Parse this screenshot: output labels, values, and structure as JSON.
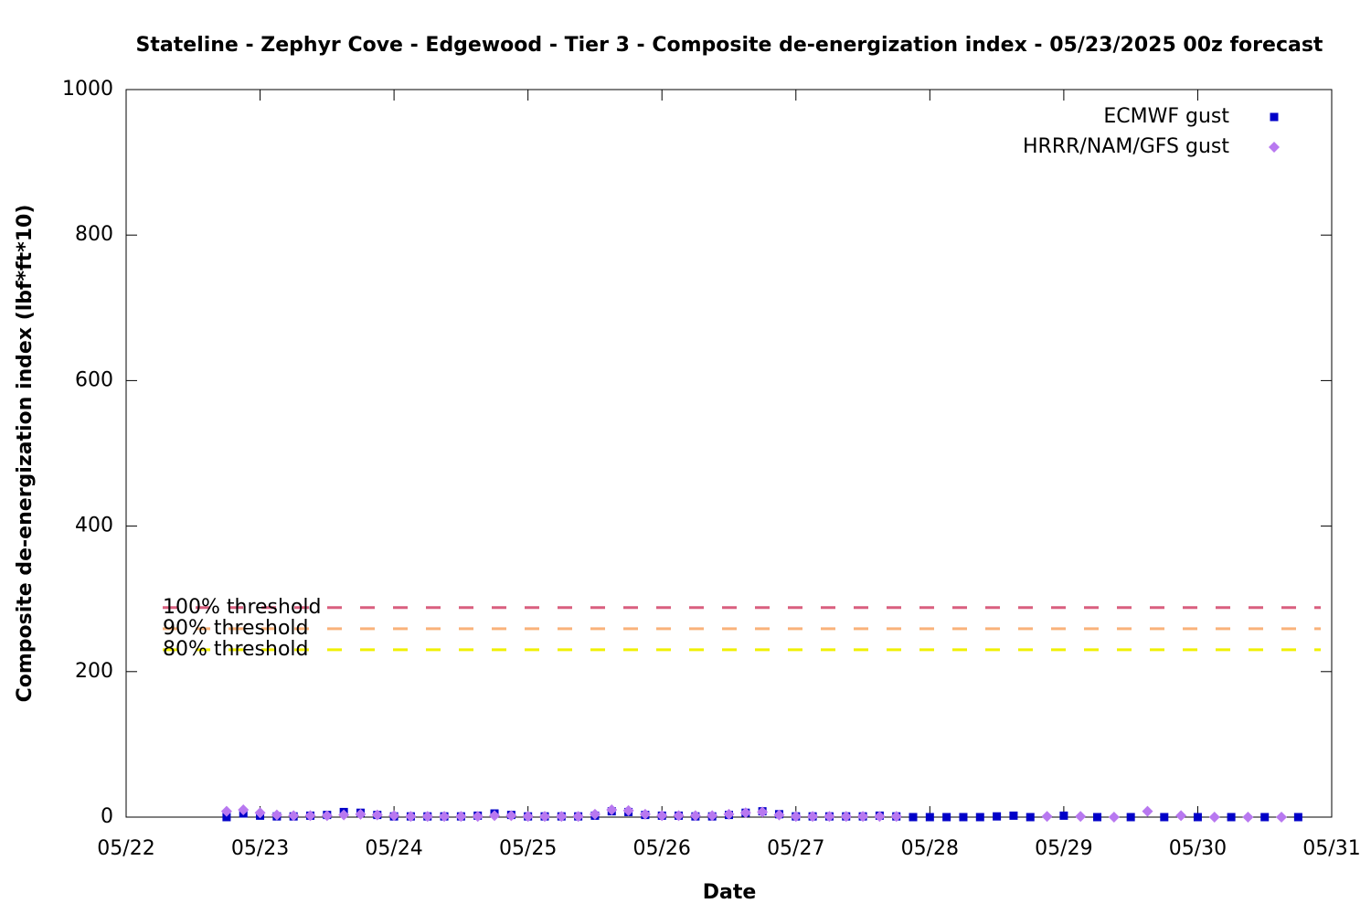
{
  "chart_data": {
    "type": "scatter",
    "title": "Stateline - Zephyr Cove - Edgewood - Tier 3 - Composite de-energization index - 05/23/2025 00z forecast",
    "xlabel": "Date",
    "ylabel": "Composite de-energization index (lbf*ft*10)",
    "xlim": [
      0,
      9
    ],
    "ylim": [
      0,
      1000
    ],
    "xticks": [
      {
        "value": 0,
        "label": "05/22"
      },
      {
        "value": 1,
        "label": "05/23"
      },
      {
        "value": 2,
        "label": "05/24"
      },
      {
        "value": 3,
        "label": "05/25"
      },
      {
        "value": 4,
        "label": "05/26"
      },
      {
        "value": 5,
        "label": "05/27"
      },
      {
        "value": 6,
        "label": "05/28"
      },
      {
        "value": 7,
        "label": "05/29"
      },
      {
        "value": 8,
        "label": "05/30"
      },
      {
        "value": 9,
        "label": "05/31"
      }
    ],
    "yticks": [
      0,
      200,
      400,
      600,
      800,
      1000
    ],
    "legend": "upper right",
    "series": [
      {
        "name": "ECMWF gust",
        "color": "#0000c8",
        "marker": "square",
        "x": [
          0.75,
          0.875,
          1,
          1.125,
          1.25,
          1.375,
          1.5,
          1.625,
          1.75,
          1.875,
          2,
          2.125,
          2.25,
          2.375,
          2.5,
          2.625,
          2.75,
          2.875,
          3,
          3.125,
          3.25,
          3.375,
          3.5,
          3.625,
          3.75,
          3.875,
          4,
          4.125,
          4.25,
          4.375,
          4.5,
          4.625,
          4.75,
          4.875,
          5,
          5.125,
          5.25,
          5.375,
          5.5,
          5.625,
          5.75,
          5.875,
          6,
          6.125,
          6.25,
          6.375,
          6.5,
          6.625,
          6.75,
          7,
          7.25,
          7.5,
          7.75,
          8,
          8.25,
          8.5,
          8.75
        ],
        "values": [
          0,
          5,
          2,
          1,
          1,
          2,
          3,
          7,
          6,
          3,
          1,
          1,
          1,
          1,
          1,
          2,
          5,
          3,
          1,
          1,
          1,
          1,
          2,
          8,
          7,
          3,
          2,
          2,
          1,
          1,
          3,
          6,
          8,
          4,
          1,
          1,
          1,
          1,
          1,
          2,
          1,
          0,
          0,
          0,
          0,
          0,
          1,
          2,
          0,
          2,
          0,
          0,
          0,
          0,
          0,
          0,
          0
        ]
      },
      {
        "name": "HRRR/NAM/GFS gust",
        "color": "#b878f0",
        "marker": "diamond",
        "x": [
          0.75,
          0.875,
          1,
          1.125,
          1.25,
          1.375,
          1.5,
          1.625,
          1.75,
          1.875,
          2,
          2.125,
          2.25,
          2.375,
          2.5,
          2.625,
          2.75,
          2.875,
          3,
          3.125,
          3.25,
          3.375,
          3.5,
          3.625,
          3.75,
          3.875,
          4,
          4.125,
          4.25,
          4.375,
          4.5,
          4.625,
          4.75,
          4.875,
          5,
          5.125,
          5.25,
          5.375,
          5.5,
          5.625,
          5.75,
          6.875,
          7.125,
          7.375,
          7.625,
          7.875,
          8.125,
          8.375,
          8.625
        ],
        "values": [
          8,
          10,
          6,
          3,
          2,
          2,
          2,
          3,
          4,
          3,
          2,
          1,
          1,
          1,
          1,
          1,
          2,
          2,
          1,
          1,
          1,
          1,
          4,
          10,
          9,
          4,
          2,
          2,
          2,
          2,
          4,
          6,
          7,
          3,
          1,
          1,
          1,
          1,
          1,
          1,
          1,
          1,
          1,
          0,
          8,
          2,
          0,
          0,
          0
        ]
      }
    ],
    "thresholds": [
      {
        "name": "100% threshold",
        "value": 288,
        "color": "#d95f7f"
      },
      {
        "name": "90% threshold",
        "value": 259,
        "color": "#f9b27a"
      },
      {
        "name": "80% threshold",
        "value": 230,
        "color": "#f0f000"
      }
    ]
  }
}
